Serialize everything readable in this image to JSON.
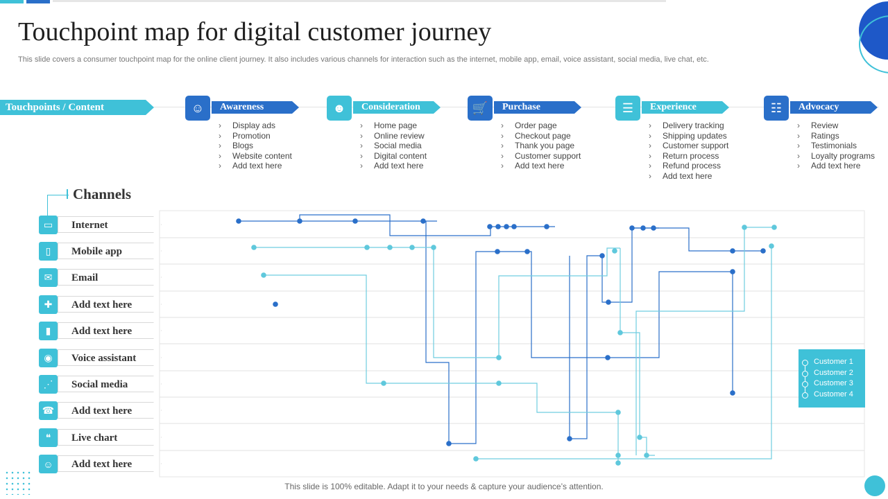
{
  "title": "Touchpoint map for digital customer journey",
  "subtitle": "This slide covers a consumer touchpoint map for the online client journey. It also includes various channels for interaction such as the internet, mobile app, email, voice assistant, social media, live chat, etc.",
  "header_label": "Touchpoints / Content",
  "colors": {
    "dark_blue": "#2a6fc9",
    "light_blue": "#3fc1d8",
    "mid_blue": "#1e58c8"
  },
  "stages": [
    {
      "label": "Awareness",
      "icon": "person-presentation-icon",
      "items": [
        "Display ads",
        "Promotion",
        "Blogs",
        "Website content",
        "Add text here"
      ]
    },
    {
      "label": "Consideration",
      "icon": "head-thinking-icon",
      "items": [
        "Home page",
        "Online review",
        "Social media",
        "Digital content",
        "Add text here"
      ]
    },
    {
      "label": "Purchase",
      "icon": "shopping-cart-icon",
      "items": [
        "Order page",
        "Checkout page",
        "Thank you page",
        "Customer support",
        "Add text here"
      ]
    },
    {
      "label": "Experience",
      "icon": "clipboard-icon",
      "items": [
        "Delivery tracking",
        "Shipping updates",
        "Customer support",
        "Return process",
        "Refund process",
        "Add text here"
      ]
    },
    {
      "label": "Advocacy",
      "icon": "group-chat-icon",
      "items": [
        "Review",
        "Ratings",
        "Testimonials",
        "Loyalty programs",
        "Add text here"
      ]
    }
  ],
  "channels_title": "Channels",
  "channels": [
    {
      "label": "Internet",
      "icon": "laptop-icon"
    },
    {
      "label": "Mobile app",
      "icon": "mobile-icon"
    },
    {
      "label": "Email",
      "icon": "envelope-icon"
    },
    {
      "label": "Add text here",
      "icon": "puzzle-icon"
    },
    {
      "label": "Add text here",
      "icon": "phone-icon"
    },
    {
      "label": "Voice assistant",
      "icon": "voice-assistant-icon"
    },
    {
      "label": "Social media",
      "icon": "share-icon"
    },
    {
      "label": "Add text here",
      "icon": "chat-support-icon"
    },
    {
      "label": "Live chart",
      "icon": "chat-bubbles-icon"
    },
    {
      "label": "Add text here",
      "icon": "users-icon"
    }
  ],
  "legend": [
    "Customer 1",
    "Customer 2",
    "Customer 3",
    "Customer 4"
  ],
  "footer": "This slide is 100% editable. Adapt it to your needs & capture your audience’s attention."
}
